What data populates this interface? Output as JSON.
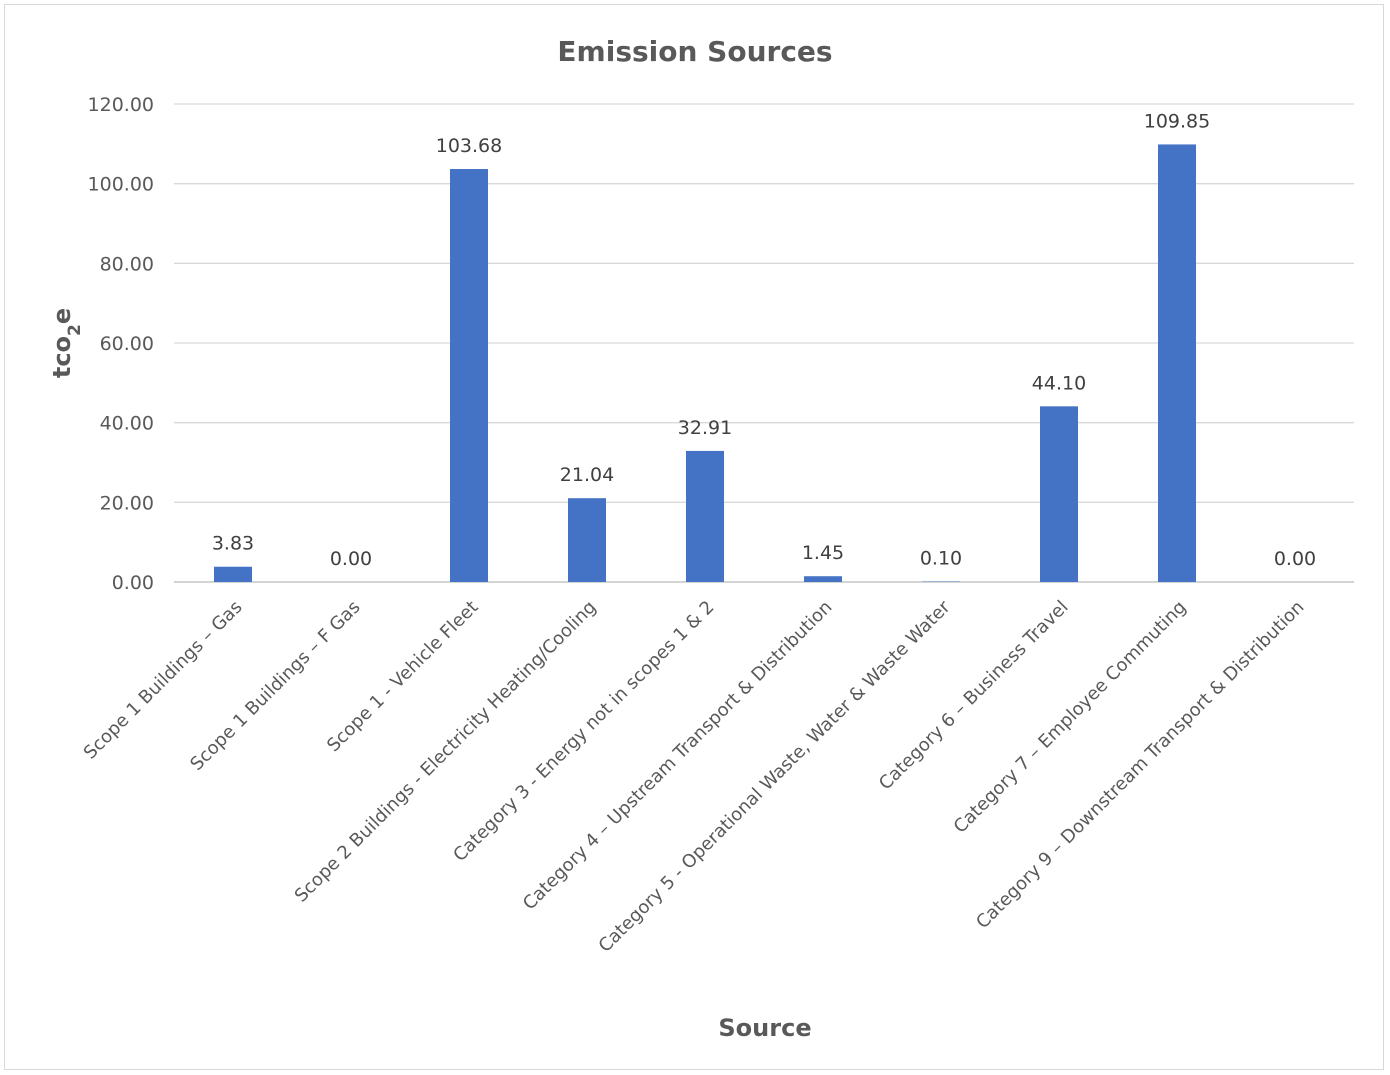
{
  "chart_data": {
    "type": "bar",
    "title": "Emission Sources",
    "xlabel": "Source",
    "ylabel": {
      "prefix": "tco",
      "subscript": "2",
      "suffix": "e"
    },
    "ylim": [
      0,
      120
    ],
    "ytick_step": 20,
    "ytick_labels": [
      "0.00",
      "20.00",
      "40.00",
      "60.00",
      "80.00",
      "100.00",
      "120.00"
    ],
    "grid": true,
    "legend": "none",
    "bar_color": "#4472C4",
    "categories": [
      "Scope 1 Buildings – Gas",
      "Scope 1 Buildings – F Gas",
      "Scope 1 - Vehicle Fleet",
      "Scope 2 Buildings - Electricity Heating/Cooling",
      "Category 3 - Energy not in scopes 1 & 2",
      "Category 4 – Upstream Transport & Distribution",
      "Category 5 - Operational Waste, Water & Waste Water",
      "Category 6 – Business Travel",
      "Category 7 – Employee Commuting",
      "Category 9 – Downstream Transport & Distribution"
    ],
    "values": [
      3.83,
      0.0,
      103.68,
      21.04,
      32.91,
      1.45,
      0.1,
      44.1,
      109.85,
      0.0
    ],
    "data_labels": [
      "3.83",
      "0.00",
      "103.68",
      "21.04",
      "32.91",
      "1.45",
      "0.10",
      "44.10",
      "109.85",
      "0.00"
    ]
  }
}
